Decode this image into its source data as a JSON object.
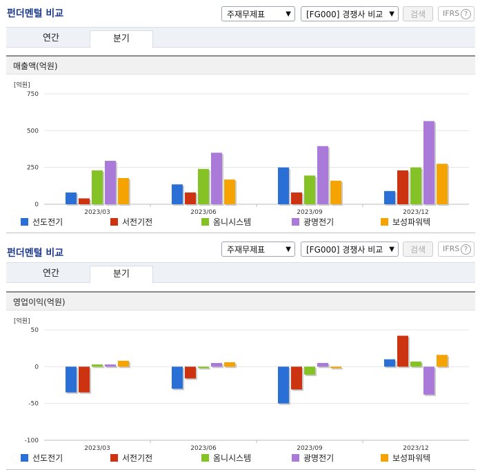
{
  "panels": [
    {
      "title": "펀더멘털 비교",
      "select1": "주재무제표",
      "select2": "[FG000] 경쟁사 비교",
      "search_label": "검색",
      "ifrs_label": "IFRS",
      "help_glyph": "?",
      "tabs": [
        "연간",
        "분기"
      ],
      "active_tab": "분기",
      "section_label": "매출액(억원)",
      "unit_label": "[억원]"
    },
    {
      "title": "펀더멘털 비교",
      "select1": "주재무제표",
      "select2": "[FG000] 경쟁사 비교",
      "search_label": "검색",
      "ifrs_label": "IFRS",
      "help_glyph": "?",
      "tabs": [
        "연간",
        "분기"
      ],
      "active_tab": "분기",
      "section_label": "영업이익(억원)",
      "unit_label": "[억원]"
    }
  ],
  "chart_data": [
    {
      "type": "bar",
      "title": "매출액(억원)",
      "ylabel": "[억원]",
      "ylim": [
        0,
        750
      ],
      "yticks": [
        0,
        250,
        500,
        750
      ],
      "categories": [
        "2023/03",
        "2023/06",
        "2023/09",
        "2023/12"
      ],
      "series": [
        {
          "name": "선도전기",
          "color": "#2a6fd6",
          "values": [
            80,
            135,
            250,
            90
          ]
        },
        {
          "name": "서전기전",
          "color": "#cc3311",
          "values": [
            40,
            80,
            80,
            230
          ]
        },
        {
          "name": "옴니시스템",
          "color": "#84c226",
          "values": [
            230,
            240,
            195,
            250
          ]
        },
        {
          "name": "광명전기",
          "color": "#a97ad8",
          "values": [
            295,
            350,
            395,
            565
          ]
        },
        {
          "name": "보성파워텍",
          "color": "#f5a300",
          "values": [
            178,
            168,
            160,
            275
          ]
        }
      ],
      "grid": true,
      "legend": "bottom"
    },
    {
      "type": "bar",
      "title": "영업이익(억원)",
      "ylabel": "[억원]",
      "ylim": [
        -100,
        50
      ],
      "yticks": [
        -100,
        -50,
        0,
        50
      ],
      "categories": [
        "2023/03",
        "2023/06",
        "2023/09",
        "2023/12"
      ],
      "series": [
        {
          "name": "선도전기",
          "color": "#2a6fd6",
          "values": [
            -35,
            -30,
            -50,
            10
          ]
        },
        {
          "name": "서전기전",
          "color": "#cc3311",
          "values": [
            -35,
            -16,
            -31,
            42
          ]
        },
        {
          "name": "옴니시스템",
          "color": "#84c226",
          "values": [
            3,
            -2,
            -11,
            7
          ]
        },
        {
          "name": "광명전기",
          "color": "#a97ad8",
          "values": [
            3,
            5,
            5,
            -38
          ]
        },
        {
          "name": "보성파워텍",
          "color": "#f5a300",
          "values": [
            8,
            6,
            -2,
            16
          ]
        }
      ],
      "grid": true,
      "legend": "bottom"
    }
  ]
}
